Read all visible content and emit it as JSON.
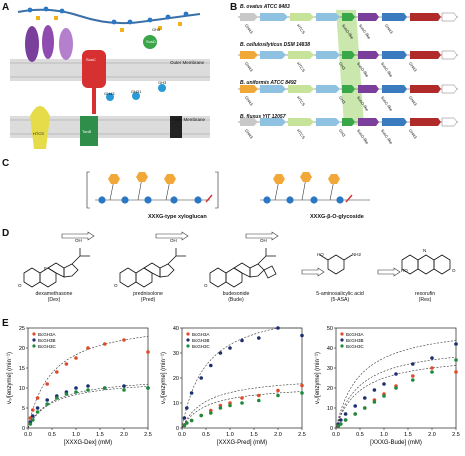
{
  "panel_labels": {
    "a": "A",
    "b": "B",
    "c": "C",
    "d": "D",
    "e": "E"
  },
  "panel_a": {
    "outer_membrane": "Outer Membrane",
    "inner_membrane": "Inner Membrane",
    "gh5": "GH5",
    "gh43": "GH43",
    "gh31": "GH31",
    "gh3": "GH3",
    "htcs": "HTCS",
    "tonb": "TonB",
    "susc": "SusC",
    "susd": "SusD"
  },
  "panel_b": {
    "strains": [
      "B. ovatus ATCC 8483",
      "B. cellulosilyticus DSM 14838",
      "B. uniformis ATCC 8492",
      "B. fluxus YIT 12057"
    ],
    "gene_labels": [
      [
        "GH43",
        "HTCS",
        "SusC-like",
        "SusD-like",
        "GH3",
        "GH31",
        "GH43"
      ],
      [
        "GH43",
        "HTCS",
        "GH3",
        "SusD-like",
        "SusC-like",
        "GH31",
        "GH43"
      ],
      [
        "GH43",
        "HTCS",
        "GH3",
        "SusD-like",
        "SusC-like",
        "GH31",
        "GH43"
      ],
      [
        "GH43",
        "HTCS",
        "GH3",
        "SusD-like",
        "SusC-like",
        "GH31",
        "GH43"
      ]
    ]
  },
  "panel_c": {
    "left_caption": "XXXG-type xyloglucan",
    "right_caption": "XXXG-β-O-glycoside"
  },
  "panel_d": {
    "compounds": [
      {
        "name": "dexamethasone",
        "abbr": "(Dex)"
      },
      {
        "name": "prednisolone",
        "abbr": "(Pred)"
      },
      {
        "name": "budesonide",
        "abbr": "(Bude)"
      },
      {
        "name": "5-aminosalicylic acid",
        "abbr": "(5-ASA)"
      },
      {
        "name": "resorufin",
        "abbr": "(Res)"
      }
    ],
    "atom_labels": {
      "oh": "OH",
      "ho": "HO",
      "o": "O",
      "nh2": "NH2",
      "n": "N",
      "f": "F",
      "h": "H"
    }
  },
  "chart_data": [
    {
      "type": "scatter",
      "xlabel": "[XXXG-Dex] (mM)",
      "ylabel": "v₀/[enzyme] (min⁻¹)",
      "xlim": [
        0,
        2.5
      ],
      "ylim": [
        0,
        25
      ],
      "xticks": [
        "0.0",
        "0.5",
        "1.0",
        "1.5",
        "2.0",
        "2.5"
      ],
      "yticks": [
        "0",
        "5",
        "10",
        "15",
        "20",
        "25"
      ],
      "legend": [
        "BcGH3A",
        "BcGH3B",
        "BcGH3C"
      ],
      "legend_position": "top-left",
      "series": [
        {
          "name": "BcGH3A",
          "color": "#e04a2a",
          "x": [
            0.05,
            0.1,
            0.2,
            0.4,
            0.6,
            0.8,
            1.0,
            1.25,
            1.6,
            2.0,
            2.5
          ],
          "y": [
            2.5,
            4.5,
            7.5,
            11,
            14,
            16,
            17.5,
            20,
            21,
            22,
            19
          ]
        },
        {
          "name": "BcGH3B",
          "color": "#1d2f6f",
          "x": [
            0.05,
            0.1,
            0.2,
            0.4,
            0.6,
            0.8,
            1.0,
            1.25,
            1.6,
            2.0,
            2.5
          ],
          "y": [
            1.5,
            3,
            5,
            7,
            8,
            9,
            10,
            10.5,
            10,
            10.5,
            10
          ]
        },
        {
          "name": "BcGH3C",
          "color": "#1e8a3c",
          "x": [
            0.05,
            0.1,
            0.2,
            0.4,
            0.6,
            0.8,
            1.0,
            1.25,
            1.6,
            2.0,
            2.5
          ],
          "y": [
            1,
            2,
            4,
            6,
            7.5,
            8.5,
            9,
            9.5,
            10,
            9.5,
            10
          ]
        }
      ]
    },
    {
      "type": "scatter",
      "xlabel": "[XXXG-Pred] (mM)",
      "ylabel": "v₀/[enzyme] (min⁻¹)",
      "xlim": [
        0,
        2.5
      ],
      "ylim": [
        0,
        40
      ],
      "xticks": [
        "0.0",
        "0.5",
        "1.0",
        "1.5",
        "2.0",
        "2.5"
      ],
      "yticks": [
        "0",
        "10",
        "20",
        "30",
        "40"
      ],
      "legend": [
        "BcGH3A",
        "BcGH3B",
        "BcGH3C"
      ],
      "legend_position": "top-left",
      "series": [
        {
          "name": "BcGH3A",
          "color": "#e04a2a",
          "x": [
            0.05,
            0.1,
            0.2,
            0.4,
            0.6,
            0.8,
            1.0,
            1.25,
            1.6,
            2.0,
            2.5
          ],
          "y": [
            1,
            2,
            3,
            5,
            7,
            9,
            10,
            12,
            13,
            15,
            17
          ]
        },
        {
          "name": "BcGH3B",
          "color": "#1d2f6f",
          "x": [
            0.05,
            0.1,
            0.2,
            0.4,
            0.6,
            0.8,
            1.0,
            1.25,
            1.6,
            2.0,
            2.5
          ],
          "y": [
            4,
            8,
            14,
            20,
            25,
            30,
            32,
            35,
            36,
            40,
            37
          ]
        },
        {
          "name": "BcGH3C",
          "color": "#1e8a3c",
          "x": [
            0.05,
            0.1,
            0.2,
            0.4,
            0.6,
            0.8,
            1.0,
            1.25,
            1.6,
            2.0,
            2.5
          ],
          "y": [
            1,
            2,
            3,
            5,
            6,
            8,
            9,
            10,
            11,
            13,
            14
          ]
        }
      ]
    },
    {
      "type": "scatter",
      "xlabel": "[XXXG-Bude] (mM)",
      "ylabel": "v₀/[enzyme] (min⁻¹)",
      "xlim": [
        0,
        2.5
      ],
      "ylim": [
        0,
        50
      ],
      "xticks": [
        "0.0",
        "0.5",
        "1.0",
        "1.5",
        "2.0",
        "2.5"
      ],
      "yticks": [
        "0",
        "10",
        "20",
        "30",
        "40",
        "50"
      ],
      "legend": [
        "BcGH3A",
        "BcGH3B",
        "BcGH3C"
      ],
      "legend_position": "top-left",
      "series": [
        {
          "name": "BcGH3A",
          "color": "#e04a2a",
          "x": [
            0.05,
            0.1,
            0.2,
            0.4,
            0.6,
            0.8,
            1.0,
            1.25,
            1.6,
            2.0,
            2.5
          ],
          "y": [
            1,
            2,
            4,
            7,
            10,
            14,
            17,
            21,
            26,
            30,
            28
          ]
        },
        {
          "name": "BcGH3B",
          "color": "#1d2f6f",
          "x": [
            0.05,
            0.1,
            0.2,
            0.4,
            0.6,
            0.8,
            1.0,
            1.25,
            1.6,
            2.0,
            2.5
          ],
          "y": [
            2,
            4,
            7,
            11,
            15,
            19,
            22,
            27,
            32,
            35,
            42
          ]
        },
        {
          "name": "BcGH3C",
          "color": "#1e8a3c",
          "x": [
            0.05,
            0.1,
            0.2,
            0.4,
            0.6,
            0.8,
            1.0,
            1.25,
            1.6,
            2.0,
            2.5
          ],
          "y": [
            1,
            2,
            4,
            7,
            10,
            13,
            16,
            20,
            24,
            28,
            34
          ]
        }
      ]
    }
  ]
}
